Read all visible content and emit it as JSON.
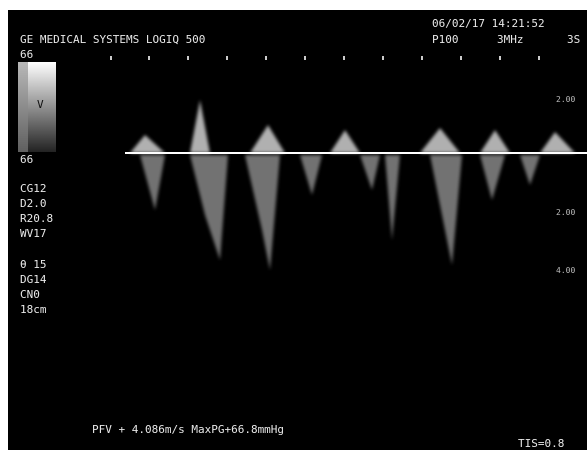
{
  "header": {
    "datetime": "06/02/17 14:21:52",
    "system": "GE MEDICAL SYSTEMS LOGIQ 500",
    "power": "P100",
    "frequency": "3MHz",
    "probe": "3S"
  },
  "gray_bar": {
    "top": "66",
    "mark": "V",
    "bottom": "66"
  },
  "parameters": [
    "CG12",
    "D2.0",
    "R20.8",
    "WV17",
    "θ 15",
    "DG14",
    "CN0",
    "18cm"
  ],
  "scale": [
    "2.00",
    "2.00",
    "4.00"
  ],
  "measurement": "PFV + 4.086m/s MaxPG+66.8mmHg",
  "tis": "TIS=0.8"
}
